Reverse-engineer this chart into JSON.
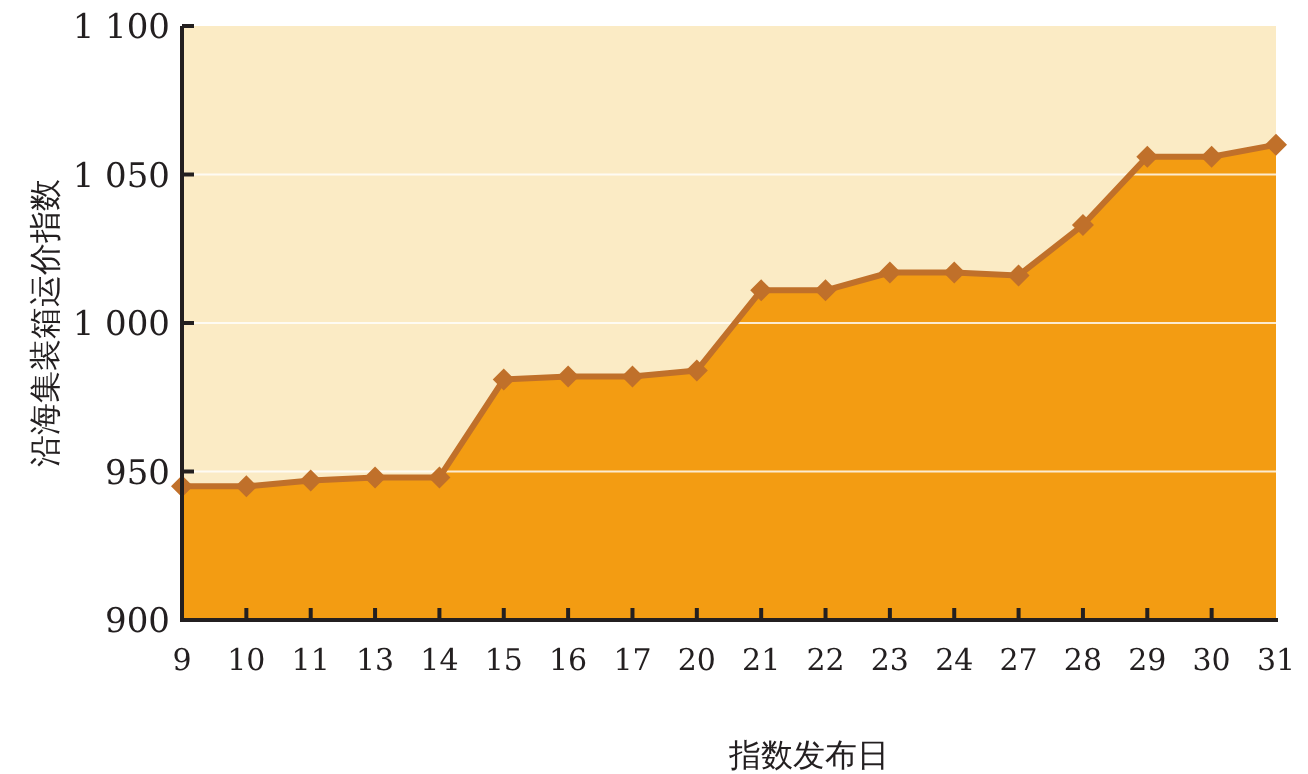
{
  "chart_data": {
    "type": "area",
    "xlabel": "指数发布日",
    "ylabel": "沿海集装箱运价指数",
    "categories": [
      "9",
      "10",
      "11",
      "13",
      "14",
      "15",
      "16",
      "17",
      "20",
      "21",
      "22",
      "23",
      "24",
      "27",
      "28",
      "29",
      "30",
      "31"
    ],
    "series": [
      {
        "color": "#f39c12",
        "values": [
          945,
          945,
          947,
          948,
          948,
          981,
          982,
          982,
          984,
          1011,
          1011,
          1017,
          1017,
          1016,
          1033,
          1056,
          1056,
          1060
        ]
      }
    ],
    "ylim": [
      900,
      1100
    ],
    "yticks": [
      900,
      950,
      {
        "value": 1000,
        "label": "1 000"
      },
      {
        "value": 1050,
        "label": "1 050"
      },
      {
        "value": 1100,
        "label": "1 100"
      }
    ],
    "grid": "y",
    "marker": "diamond",
    "line_style": "solid"
  }
}
